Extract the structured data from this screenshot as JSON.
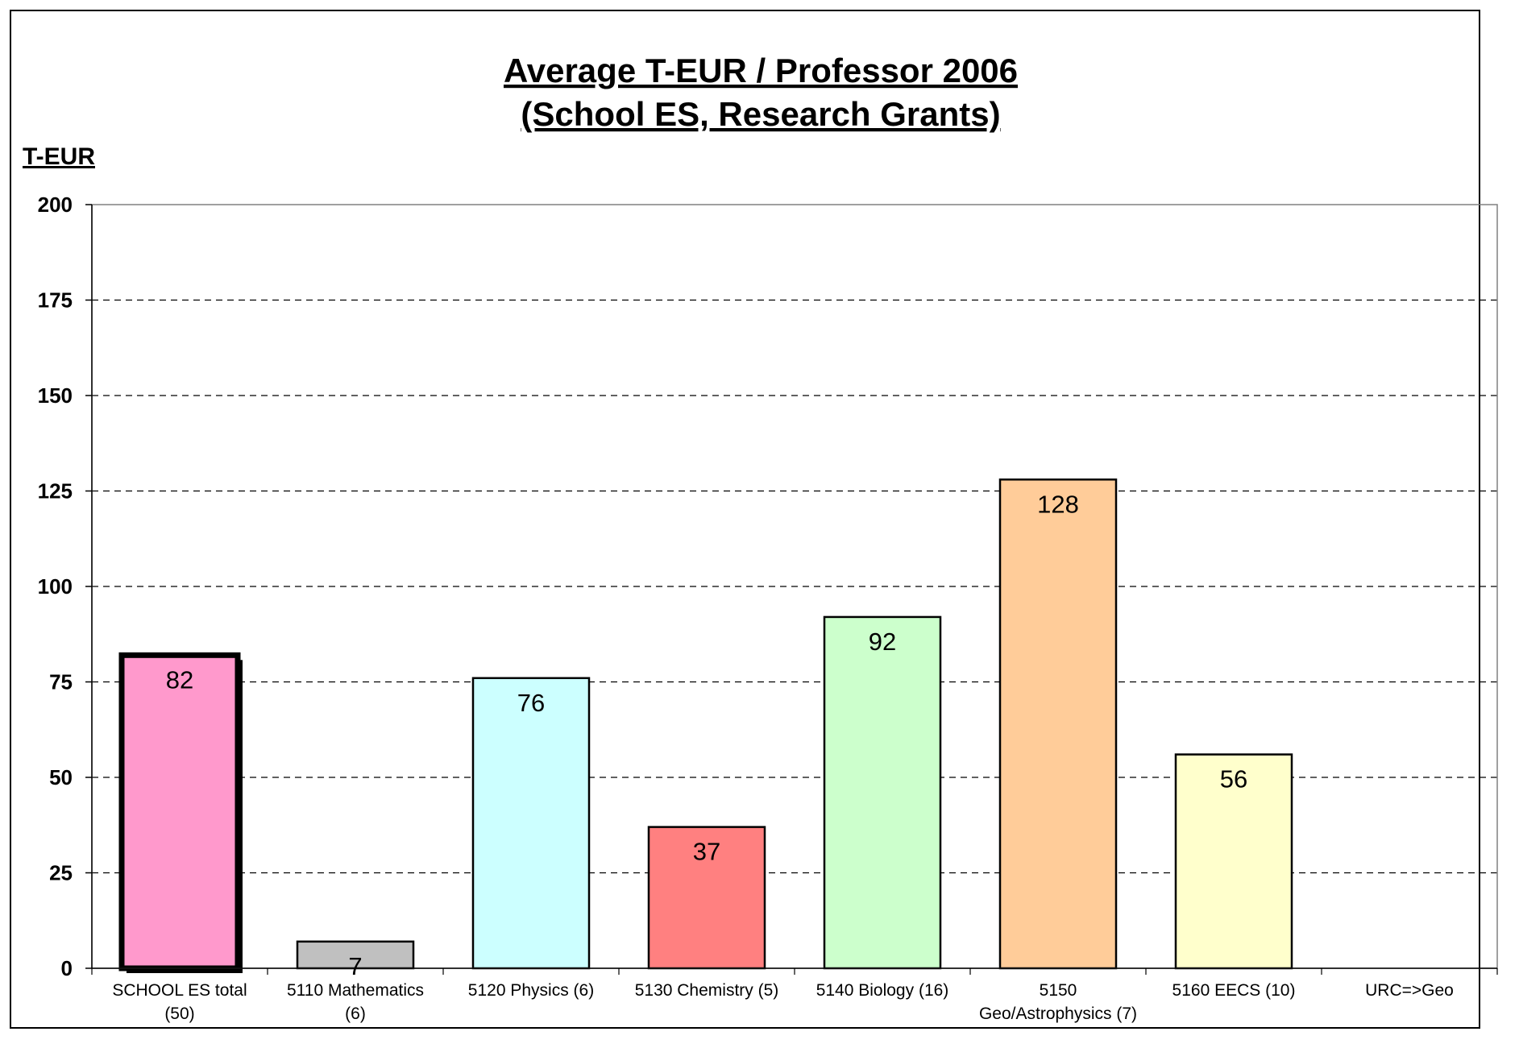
{
  "chart_data": {
    "type": "bar",
    "title": "Average T-EUR / Professor 2006",
    "subtitle": "(School ES, Research Grants)",
    "ylabel": "T-EUR",
    "xlabel": "",
    "ylim": [
      0,
      200
    ],
    "yticks": [
      "0",
      "25",
      "50",
      "75",
      "100",
      "125",
      "150",
      "175",
      "200"
    ],
    "grid": "horizontal dashed",
    "legend": "none",
    "categories": [
      [
        "SCHOOL ES total",
        "(50)"
      ],
      [
        "5110 Mathematics",
        "(6)"
      ],
      [
        "5120 Physics (6)"
      ],
      [
        "5130 Chemistry (5)"
      ],
      [
        "5140 Biology (16)"
      ],
      [
        "5150",
        "Geo/Astrophysics (7)"
      ],
      [
        "5160 EECS (10)"
      ],
      [
        "URC=>Geo"
      ]
    ],
    "values": [
      82,
      7,
      76,
      37,
      92,
      128,
      56,
      null
    ],
    "data_labels": [
      "82",
      "7",
      "76",
      "37",
      "92",
      "128",
      "56",
      ""
    ],
    "colors": [
      "#ff99cc",
      "#c0c0c0",
      "#ccffff",
      "#ff8080",
      "#ccffcc",
      "#ffcc99",
      "#ffffcc",
      "#ffffff"
    ],
    "highlighted_category": "SCHOOL ES total"
  }
}
